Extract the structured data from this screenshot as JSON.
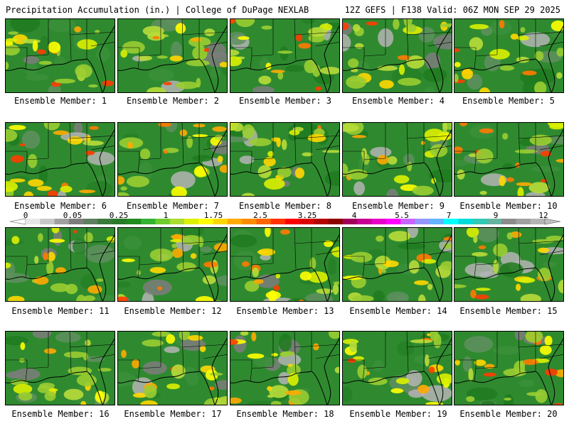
{
  "header": {
    "title": "Precipitation Accumulation (in.) | College of DuPage NEXLAB",
    "run_info": "12Z GEFS | F138 Valid: 06Z MON SEP 29 2025"
  },
  "colorbar": {
    "tick_labels": [
      "0",
      "0.05",
      "0.25",
      "1",
      "1.75",
      "2.5",
      "3.25",
      "4",
      "5.5",
      "7",
      "9",
      "12"
    ],
    "colors": [
      "#e6e6e6",
      "#c8c8c8",
      "#a0a0a0",
      "#7d7d7d",
      "#5f7f5f",
      "#3b7a3b",
      "#287a28",
      "#1e8c1e",
      "#32b432",
      "#6ecd2d",
      "#aadc32",
      "#dcf000",
      "#ffff00",
      "#ffd700",
      "#ffaa00",
      "#ff8c00",
      "#ff6400",
      "#ff3200",
      "#ff0000",
      "#dc0000",
      "#b40000",
      "#8c0000",
      "#a0005a",
      "#c80096",
      "#e600c8",
      "#ff00ff",
      "#c864ff",
      "#9696ff",
      "#64b4ff",
      "#00ffff",
      "#00dcdc",
      "#32c8b4",
      "#64b4a0",
      "#8c8c8c",
      "#a0a0a0",
      "#b4b4b4"
    ]
  },
  "members": [
    {
      "label": "Ensemble Member: 1"
    },
    {
      "label": "Ensemble Member: 2"
    },
    {
      "label": "Ensemble Member: 3"
    },
    {
      "label": "Ensemble Member: 4"
    },
    {
      "label": "Ensemble Member: 5"
    },
    {
      "label": "Ensemble Member: 6"
    },
    {
      "label": "Ensemble Member: 7"
    },
    {
      "label": "Ensemble Member: 8"
    },
    {
      "label": "Ensemble Member: 9"
    },
    {
      "label": "Ensemble Member: 10"
    },
    {
      "label": "Ensemble Member: 11"
    },
    {
      "label": "Ensemble Member: 12"
    },
    {
      "label": "Ensemble Member: 13"
    },
    {
      "label": "Ensemble Member: 14"
    },
    {
      "label": "Ensemble Member: 15"
    },
    {
      "label": "Ensemble Member: 16"
    },
    {
      "label": "Ensemble Member: 17"
    },
    {
      "label": "Ensemble Member: 18"
    },
    {
      "label": "Ensemble Member: 19"
    },
    {
      "label": "Ensemble Member: 20"
    }
  ]
}
